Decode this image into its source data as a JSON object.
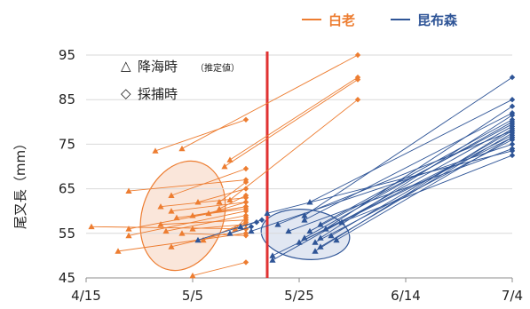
{
  "chart_data": {
    "type": "scatter",
    "description_free": true,
    "ylabel": "尾叉長（mm）",
    "xlabel": "",
    "x_ticks": [
      "4/15",
      "5/5",
      "5/25",
      "6/14",
      "7/4"
    ],
    "y_ticks": [
      45,
      55,
      65,
      75,
      85,
      95
    ],
    "ylim": [
      45,
      95
    ],
    "xlim": [
      "4/15",
      "7/4"
    ],
    "grid": "horizontal",
    "legend": {
      "placement": "top-right",
      "items": [
        {
          "label": "白老",
          "color": "#ed7d31"
        },
        {
          "label": "昆布森",
          "color": "#2f5597"
        }
      ]
    },
    "annotations": {
      "triangle_label": "降海時",
      "triangle_note": "（推定値）",
      "diamond_label": "採捕時",
      "triangle_marker": "△",
      "diamond_marker": "◇"
    },
    "reference_line": {
      "x": "5/19",
      "color": "#e03232"
    },
    "series": [
      {
        "name": "白老",
        "color": "#ed7d31",
        "pairs": [
          {
            "release": [
              "4/16",
              56.5
            ],
            "capture": [
              "5/15",
              56.0
            ]
          },
          {
            "release": [
              "4/21",
              51.0
            ],
            "capture": [
              "5/15",
              55.0
            ]
          },
          {
            "release": [
              "4/23",
              64.5
            ],
            "capture": [
              "5/15",
              67.0
            ]
          },
          {
            "release": [
              "4/23",
              56.0
            ],
            "capture": [
              "5/15",
              61.0
            ]
          },
          {
            "release": [
              "4/23",
              54.5
            ],
            "capture": [
              "5/15",
              60.0
            ]
          },
          {
            "release": [
              "4/28",
              73.5
            ],
            "capture": [
              "5/15",
              80.5
            ]
          },
          {
            "release": [
              "4/29",
              57.0
            ],
            "capture": [
              "5/15",
              58.0
            ]
          },
          {
            "release": [
              "4/29",
              61.0
            ],
            "capture": [
              "5/15",
              63.0
            ]
          },
          {
            "release": [
              "4/30",
              55.5
            ],
            "capture": [
              "5/15",
              59.0
            ]
          },
          {
            "release": [
              "5/1",
              63.5
            ],
            "capture": [
              "5/15",
              69.5
            ]
          },
          {
            "release": [
              "5/1",
              60.0
            ],
            "capture": [
              "5/15",
              62.0
            ]
          },
          {
            "release": [
              "5/1",
              52.0
            ],
            "capture": [
              "5/15",
              56.0
            ]
          },
          {
            "release": [
              "5/2",
              58.5
            ],
            "capture": [
              "5/15",
              60.5
            ]
          },
          {
            "release": [
              "5/3",
              74.0
            ],
            "capture": [
              "6/5",
              95.0
            ]
          },
          {
            "release": [
              "5/3",
              55.0
            ],
            "capture": [
              "5/15",
              54.5
            ]
          },
          {
            "release": [
              "5/5",
              59.0
            ],
            "capture": [
              "5/15",
              61.0
            ]
          },
          {
            "release": [
              "5/5",
              56.0
            ],
            "capture": [
              "5/15",
              57.0
            ]
          },
          {
            "release": [
              "5/5",
              45.5
            ],
            "capture": [
              "5/15",
              48.5
            ]
          },
          {
            "release": [
              "5/6",
              62.0
            ],
            "capture": [
              "5/15",
              65.0
            ]
          },
          {
            "release": [
              "5/7",
              53.5
            ],
            "capture": [
              "5/15",
              57.5
            ]
          },
          {
            "release": [
              "5/8",
              59.5
            ],
            "capture": [
              "5/15",
              62.0
            ]
          },
          {
            "release": [
              "5/10",
              62.0
            ],
            "capture": [
              "5/15",
              66.5
            ]
          },
          {
            "release": [
              "5/10",
              60.5
            ],
            "capture": [
              "5/15",
              63.5
            ]
          },
          {
            "release": [
              "5/11",
              70.0
            ],
            "capture": [
              "6/5",
              89.5
            ]
          },
          {
            "release": [
              "5/12",
              71.5
            ],
            "capture": [
              "6/5",
              90.0
            ]
          },
          {
            "release": [
              "5/12",
              62.5
            ],
            "capture": [
              "6/5",
              85.0
            ]
          },
          {
            "release": [
              "5/13",
              56.0
            ],
            "capture": [
              "5/15",
              58.5
            ]
          }
        ]
      },
      {
        "name": "昆布森",
        "color": "#2f5597",
        "pairs": [
          {
            "release": [
              "5/6",
              53.5
            ],
            "capture": [
              "5/18",
              58.0
            ]
          },
          {
            "release": [
              "5/12",
              55.0
            ],
            "capture": [
              "5/16",
              56.5
            ]
          },
          {
            "release": [
              "5/14",
              56.5
            ],
            "capture": [
              "5/17",
              57.5
            ]
          },
          {
            "release": [
              "5/16",
              55.5
            ],
            "capture": [
              "7/4",
              75.0
            ]
          },
          {
            "release": [
              "5/19",
              59.5
            ],
            "capture": [
              "7/4",
              73.5
            ]
          },
          {
            "release": [
              "5/20",
              50.0
            ],
            "capture": [
              "7/4",
              76.5
            ]
          },
          {
            "release": [
              "5/20",
              49.0
            ],
            "capture": [
              "7/4",
              79.0
            ]
          },
          {
            "release": [
              "5/21",
              57.0
            ],
            "capture": [
              "7/4",
              78.0
            ]
          },
          {
            "release": [
              "5/23",
              55.5
            ],
            "capture": [
              "7/4",
              74.0
            ]
          },
          {
            "release": [
              "5/25",
              53.0
            ],
            "capture": [
              "7/4",
              77.0
            ]
          },
          {
            "release": [
              "5/26",
              54.0
            ],
            "capture": [
              "7/4",
              80.0
            ]
          },
          {
            "release": [
              "5/26",
              58.0
            ],
            "capture": [
              "7/4",
              82.0
            ]
          },
          {
            "release": [
              "5/26",
              59.0
            ],
            "capture": [
              "7/4",
              90.0
            ]
          },
          {
            "release": [
              "5/27",
              62.0
            ],
            "capture": [
              "7/4",
              85.0
            ]
          },
          {
            "release": [
              "5/27",
              55.5
            ],
            "capture": [
              "7/4",
              79.5
            ]
          },
          {
            "release": [
              "5/28",
              53.0
            ],
            "capture": [
              "7/4",
              76.0
            ]
          },
          {
            "release": [
              "5/28",
              51.0
            ],
            "capture": [
              "7/4",
              78.5
            ]
          },
          {
            "release": [
              "5/29",
              54.0
            ],
            "capture": [
              "7/4",
              81.5
            ]
          },
          {
            "release": [
              "5/29",
              57.0
            ],
            "capture": [
              "7/4",
              80.5
            ]
          },
          {
            "release": [
              "5/29",
              52.0
            ],
            "capture": [
              "7/4",
              77.5
            ]
          },
          {
            "release": [
              "5/30",
              56.0
            ],
            "capture": [
              "7/4",
              83.5
            ]
          },
          {
            "release": [
              "5/31",
              54.5
            ],
            "capture": [
              "7/4",
              78.0
            ]
          },
          {
            "release": [
              "6/1",
              53.5
            ],
            "capture": [
              "7/4",
              76.5
            ]
          },
          {
            "release": [
              "6/2",
              57.5
            ],
            "capture": [
              "7/4",
              72.5
            ]
          }
        ]
      }
    ]
  }
}
